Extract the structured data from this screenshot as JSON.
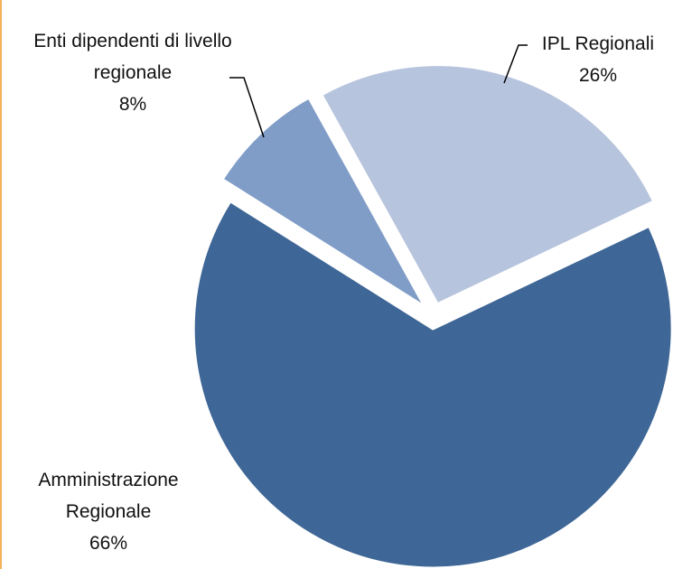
{
  "chart_data": {
    "type": "pie",
    "categories": [
      "IPL Regionali",
      "Amministrazione Regionale",
      "Enti dipendenti di livello regionale"
    ],
    "values": [
      26,
      66,
      8
    ],
    "value_labels": [
      "26%",
      "66%",
      "8%"
    ],
    "colors": [
      "#b7c4dd",
      "#3e6696",
      "#809dc7"
    ]
  }
}
